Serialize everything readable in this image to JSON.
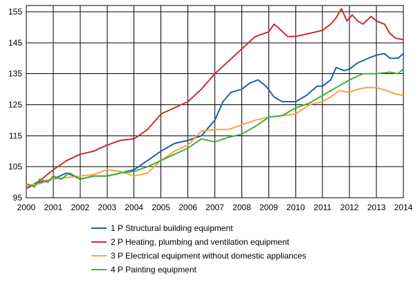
{
  "chart_data": {
    "type": "line",
    "grid": true,
    "legend_position": "bottom",
    "xlim": [
      2000,
      2014
    ],
    "ylim": [
      95,
      157
    ],
    "x_ticks": [
      2000,
      2001,
      2002,
      2003,
      2004,
      2005,
      2006,
      2007,
      2008,
      2009,
      2010,
      2011,
      2012,
      2013,
      2014
    ],
    "y_ticks": [
      95,
      105,
      115,
      125,
      135,
      145,
      155
    ],
    "series": [
      {
        "name": "1 P Structural building equipment",
        "color": "#1f5fa6",
        "points": [
          [
            2000.0,
            98
          ],
          [
            2000.5,
            100
          ],
          [
            2001.0,
            101
          ],
          [
            2001.5,
            103
          ],
          [
            2002.0,
            101
          ],
          [
            2002.5,
            102
          ],
          [
            2003.0,
            102
          ],
          [
            2003.5,
            103
          ],
          [
            2004.0,
            104
          ],
          [
            2004.5,
            107
          ],
          [
            2005.0,
            110
          ],
          [
            2005.5,
            112.5
          ],
          [
            2006.0,
            113.5
          ],
          [
            2006.5,
            115
          ],
          [
            2007.0,
            120
          ],
          [
            2007.3,
            126
          ],
          [
            2007.6,
            129
          ],
          [
            2008.0,
            130
          ],
          [
            2008.3,
            132
          ],
          [
            2008.6,
            133
          ],
          [
            2008.9,
            131
          ],
          [
            2009.2,
            127.5
          ],
          [
            2009.5,
            126
          ],
          [
            2009.8,
            126
          ],
          [
            2010.0,
            126
          ],
          [
            2010.4,
            128
          ],
          [
            2010.8,
            131
          ],
          [
            2011.0,
            131
          ],
          [
            2011.3,
            133
          ],
          [
            2011.5,
            137
          ],
          [
            2011.8,
            136
          ],
          [
            2012.0,
            136.5
          ],
          [
            2012.3,
            138.5
          ],
          [
            2012.7,
            140
          ],
          [
            2013.0,
            141
          ],
          [
            2013.3,
            141.5
          ],
          [
            2013.5,
            140
          ],
          [
            2013.8,
            140
          ],
          [
            2014.0,
            141.5
          ]
        ]
      },
      {
        "name": "2 P Heating, plumbing and ventilation equipment",
        "color": "#cc2a2a",
        "points": [
          [
            2000.0,
            98
          ],
          [
            2000.5,
            100.5
          ],
          [
            2001.0,
            104
          ],
          [
            2001.5,
            107
          ],
          [
            2002.0,
            109
          ],
          [
            2002.5,
            110
          ],
          [
            2003.0,
            112
          ],
          [
            2003.5,
            113.5
          ],
          [
            2004.0,
            114
          ],
          [
            2004.5,
            117
          ],
          [
            2004.8,
            120
          ],
          [
            2005.0,
            122
          ],
          [
            2005.5,
            124
          ],
          [
            2006.0,
            126
          ],
          [
            2006.5,
            130
          ],
          [
            2007.0,
            135
          ],
          [
            2007.5,
            139
          ],
          [
            2008.0,
            143
          ],
          [
            2008.5,
            147
          ],
          [
            2009.0,
            148.5
          ],
          [
            2009.2,
            151
          ],
          [
            2009.4,
            149.5
          ],
          [
            2009.7,
            147
          ],
          [
            2010.0,
            147
          ],
          [
            2010.5,
            148
          ],
          [
            2011.0,
            149
          ],
          [
            2011.3,
            151
          ],
          [
            2011.5,
            153
          ],
          [
            2011.7,
            156
          ],
          [
            2011.9,
            152
          ],
          [
            2012.1,
            154
          ],
          [
            2012.3,
            152
          ],
          [
            2012.5,
            151
          ],
          [
            2012.8,
            153.5
          ],
          [
            2013.0,
            152
          ],
          [
            2013.3,
            151
          ],
          [
            2013.5,
            148
          ],
          [
            2013.7,
            146.5
          ],
          [
            2014.0,
            146
          ]
        ]
      },
      {
        "name": "3 P Electrical equipment without domestic appliances",
        "color": "#f2a540",
        "points": [
          [
            2000.0,
            99
          ],
          [
            2000.5,
            99.5
          ],
          [
            2001.0,
            101
          ],
          [
            2001.5,
            101.5
          ],
          [
            2002.0,
            102
          ],
          [
            2002.5,
            102.5
          ],
          [
            2003.0,
            104
          ],
          [
            2003.5,
            103.5
          ],
          [
            2004.0,
            102
          ],
          [
            2004.5,
            103
          ],
          [
            2005.0,
            107
          ],
          [
            2005.5,
            110
          ],
          [
            2006.0,
            112
          ],
          [
            2006.5,
            116.5
          ],
          [
            2007.0,
            117
          ],
          [
            2007.5,
            117
          ],
          [
            2008.0,
            118.5
          ],
          [
            2008.5,
            120
          ],
          [
            2009.0,
            121
          ],
          [
            2009.5,
            121.5
          ],
          [
            2010.0,
            122
          ],
          [
            2010.5,
            125
          ],
          [
            2011.0,
            126
          ],
          [
            2011.3,
            127.5
          ],
          [
            2011.6,
            129.5
          ],
          [
            2012.0,
            129
          ],
          [
            2012.3,
            130
          ],
          [
            2012.6,
            130.5
          ],
          [
            2013.0,
            130.5
          ],
          [
            2013.4,
            129.5
          ],
          [
            2013.7,
            128.5
          ],
          [
            2014.0,
            128
          ]
        ]
      },
      {
        "name": "4 P Painting equipment",
        "color": "#3fae3a",
        "points": [
          [
            2000.0,
            99.5
          ],
          [
            2000.3,
            98.5
          ],
          [
            2000.5,
            101
          ],
          [
            2000.8,
            100
          ],
          [
            2001.0,
            102
          ],
          [
            2001.3,
            101
          ],
          [
            2001.6,
            103
          ],
          [
            2002.0,
            101
          ],
          [
            2002.5,
            102
          ],
          [
            2003.0,
            102
          ],
          [
            2003.5,
            103
          ],
          [
            2004.0,
            103.5
          ],
          [
            2004.5,
            105
          ],
          [
            2005.0,
            107
          ],
          [
            2005.5,
            109
          ],
          [
            2006.0,
            111
          ],
          [
            2006.5,
            114
          ],
          [
            2007.0,
            113
          ],
          [
            2007.5,
            114.5
          ],
          [
            2008.0,
            115.5
          ],
          [
            2008.5,
            118
          ],
          [
            2009.0,
            121
          ],
          [
            2009.5,
            121.5
          ],
          [
            2010.0,
            124
          ],
          [
            2010.5,
            125.5
          ],
          [
            2011.0,
            128
          ],
          [
            2011.5,
            130.5
          ],
          [
            2012.0,
            133
          ],
          [
            2012.5,
            135
          ],
          [
            2013.0,
            135
          ],
          [
            2013.5,
            135.5
          ],
          [
            2013.8,
            135
          ],
          [
            2014.0,
            136.5
          ]
        ]
      }
    ]
  }
}
